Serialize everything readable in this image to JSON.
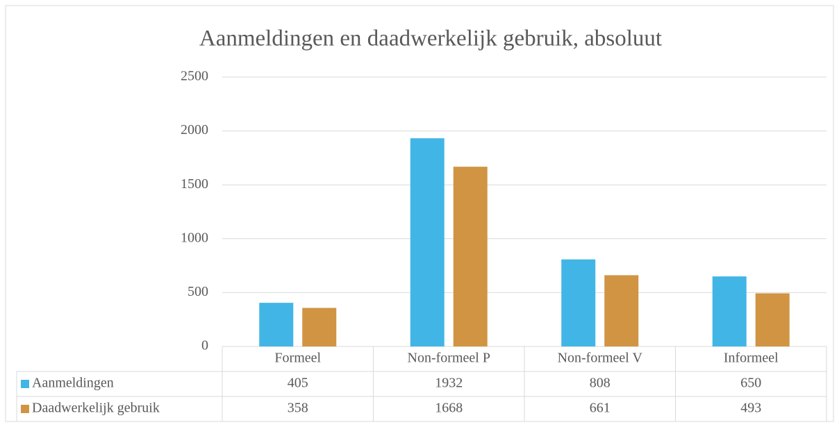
{
  "chart_data": {
    "type": "bar",
    "title": "Aanmeldingen en daadwerkelijk gebruik, absoluut",
    "categories": [
      "Formeel",
      "Non-formeel P",
      "Non-formeel V",
      "Informeel"
    ],
    "series": [
      {
        "name": "Aanmeldingen",
        "color": "#41b6e6",
        "values": [
          405,
          1932,
          808,
          650
        ]
      },
      {
        "name": "Daadwerkelijk gebruik",
        "color": "#d09443",
        "values": [
          358,
          1668,
          661,
          493
        ]
      }
    ],
    "ylim": [
      0,
      2500
    ],
    "yticks": [
      0,
      500,
      1000,
      1500,
      2000,
      2500
    ],
    "grid": true
  }
}
